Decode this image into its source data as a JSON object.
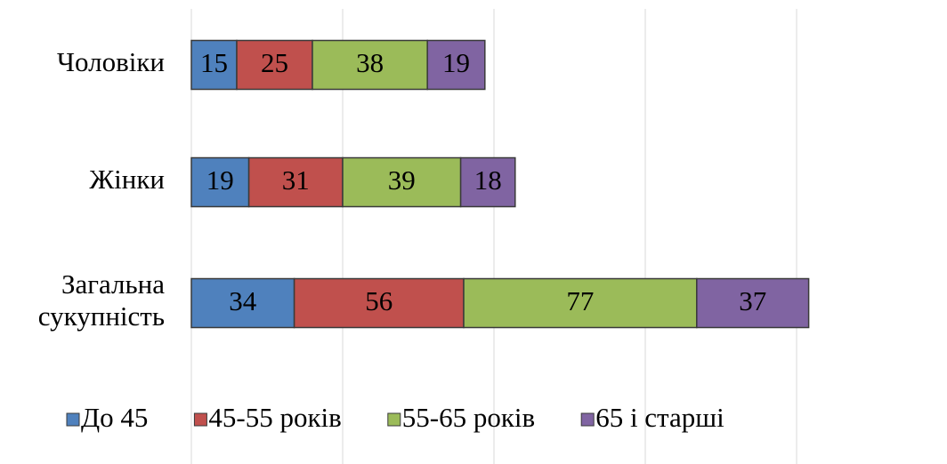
{
  "chart_data": {
    "type": "stacked-bar-horizontal",
    "categories": [
      "Чоловіки",
      "Жінки",
      "Загальна сукупність"
    ],
    "series": [
      {
        "name": "До 45",
        "color": "#4f81bd",
        "values": [
          15,
          19,
          34
        ]
      },
      {
        "name": "45-55 років",
        "color": "#c0504d",
        "values": [
          25,
          31,
          56
        ]
      },
      {
        "name": "55-65 років",
        "color": "#9bbb59",
        "values": [
          38,
          39,
          77
        ]
      },
      {
        "name": "65 і старші",
        "color": "#8064a2",
        "values": [
          19,
          18,
          37
        ]
      }
    ],
    "xlim": [
      0,
      250
    ],
    "xticks": [
      0,
      50,
      100,
      150,
      200,
      250
    ],
    "grid": true,
    "legend": "bottom"
  }
}
